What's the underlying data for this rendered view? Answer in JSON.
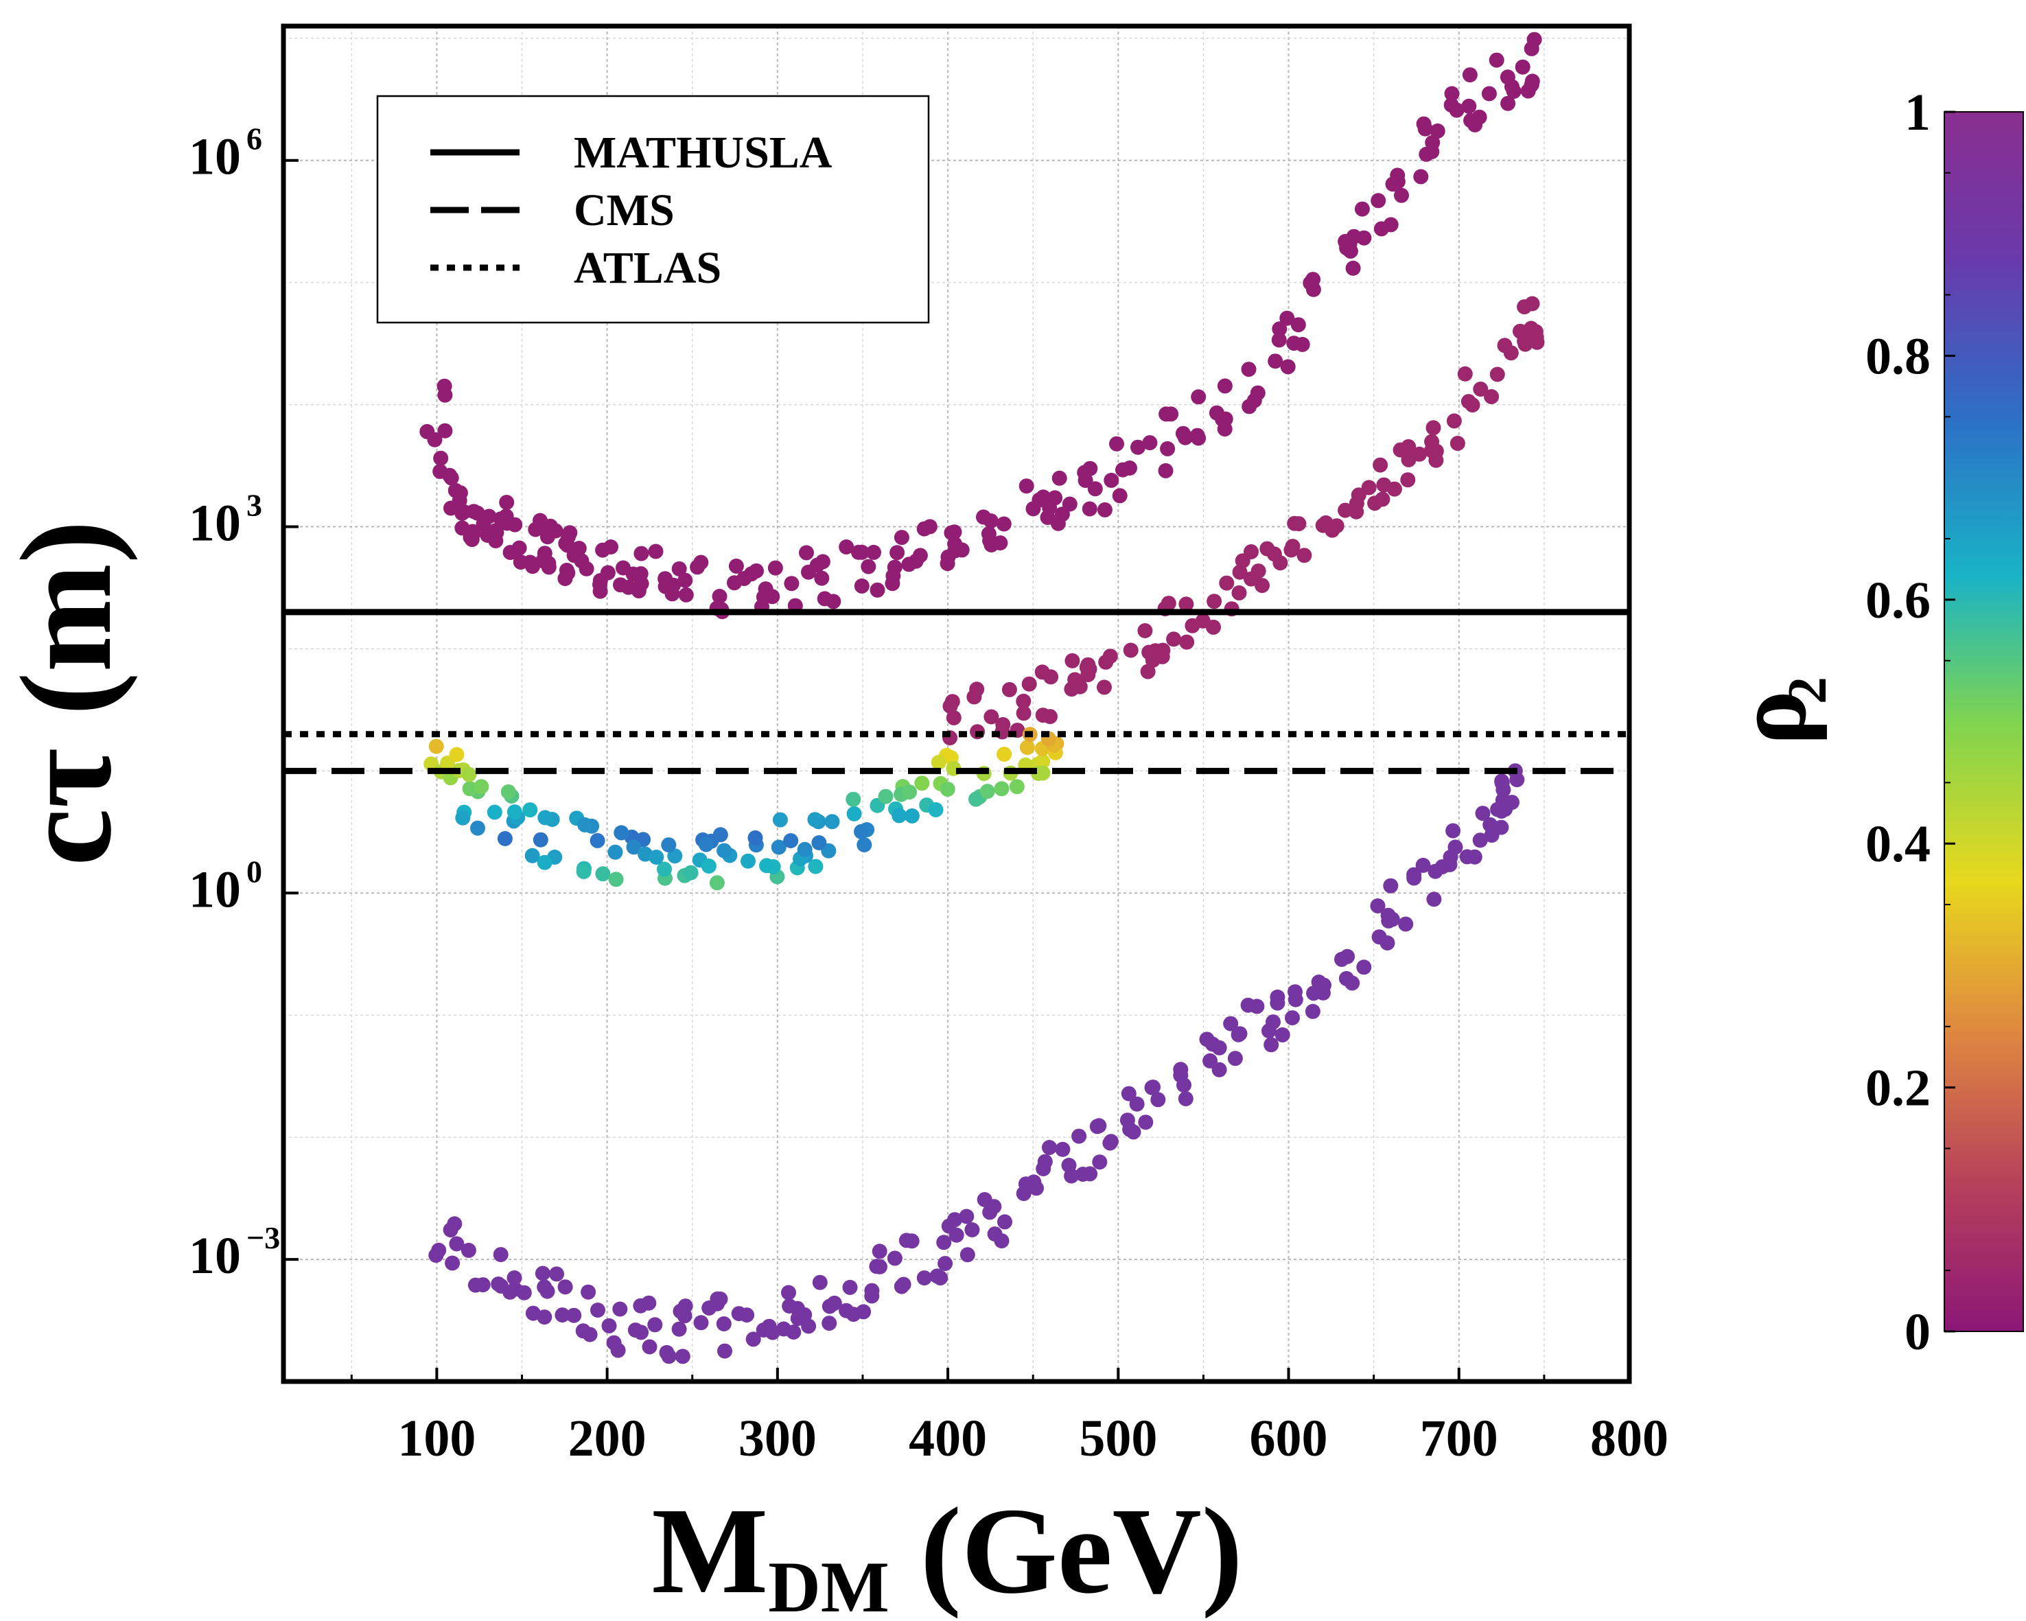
{
  "chart_data": {
    "type": "scatter",
    "xlabel": "M",
    "xlabel_sub": "DM",
    "xlabel_unit": "(GeV)",
    "ylabel": "cτ (m)",
    "y_scale": "log",
    "xlim": [
      10,
      800
    ],
    "ylim_log10": [
      -4.0,
      7.1
    ],
    "x_ticks": [
      100,
      200,
      300,
      400,
      500,
      600,
      700,
      800
    ],
    "x_tick_labels": [
      "100",
      "200",
      "300",
      "400",
      "500",
      "600",
      "700",
      "800"
    ],
    "y_ticks_log10": [
      -3,
      0,
      3,
      6
    ],
    "y_tick_labels": [
      {
        "base": "10",
        "exp": "−3"
      },
      {
        "base": "10",
        "exp": "0"
      },
      {
        "base": "10",
        "exp": "3"
      },
      {
        "base": "10",
        "exp": "6"
      }
    ],
    "grid": true,
    "legend_position": "top-left",
    "reference_lines": [
      {
        "name": "MATHUSLA",
        "style": "solid",
        "y": 200
      },
      {
        "name": "CMS",
        "style": "dashed",
        "y": 10
      },
      {
        "name": "ATLAS",
        "style": "dotted",
        "y": 20
      }
    ],
    "colorbar": {
      "label": "ρ",
      "label_sub": "2",
      "range": [
        0,
        1
      ],
      "ticks": [
        0,
        0.2,
        0.4,
        0.6,
        0.8,
        1
      ],
      "tick_labels": [
        "0",
        "0.2",
        "0.4",
        "0.6",
        "0.8",
        "1"
      ],
      "colormap_stops": [
        "#8b1777",
        "#b7405b",
        "#e08a3f",
        "#e7d81d",
        "#7fd450",
        "#19b3c6",
        "#2d6fc6",
        "#6a3aac",
        "#8a2f90"
      ]
    },
    "series": [
      {
        "color_value": 0.02,
        "points": [
          [
            100,
            10000
          ],
          [
            105,
            3000
          ],
          [
            110,
            1500
          ],
          [
            120,
            1500
          ],
          [
            130,
            900
          ],
          [
            140,
            1000
          ],
          [
            150,
            800
          ],
          [
            160,
            700
          ],
          [
            170,
            600
          ],
          [
            180,
            550
          ],
          [
            190,
            500
          ],
          [
            200,
            450
          ],
          [
            220,
            400
          ],
          [
            240,
            380
          ],
          [
            260,
            350
          ],
          [
            280,
            330
          ],
          [
            300,
            350
          ],
          [
            320,
            380
          ],
          [
            340,
            420
          ],
          [
            360,
            500
          ],
          [
            380,
            600
          ],
          [
            400,
            750
          ],
          [
            420,
            900
          ],
          [
            440,
            1200
          ],
          [
            460,
            1500
          ],
          [
            480,
            2000
          ],
          [
            500,
            2800
          ],
          [
            520,
            4000
          ],
          [
            540,
            6000
          ],
          [
            560,
            9000
          ],
          [
            580,
            15000
          ],
          [
            600,
            30000
          ],
          [
            620,
            80000
          ],
          [
            640,
            200000
          ],
          [
            660,
            500000
          ],
          [
            680,
            1200000
          ],
          [
            700,
            2500000
          ],
          [
            720,
            4000000
          ],
          [
            740,
            6000000
          ]
        ]
      },
      {
        "color_value": 0.05,
        "points": [
          [
            400,
            25
          ],
          [
            420,
            30
          ],
          [
            440,
            35
          ],
          [
            460,
            45
          ],
          [
            480,
            60
          ],
          [
            500,
            80
          ],
          [
            520,
            120
          ],
          [
            540,
            160
          ],
          [
            560,
            250
          ],
          [
            580,
            400
          ],
          [
            600,
            700
          ],
          [
            620,
            1000
          ],
          [
            640,
            1800
          ],
          [
            660,
            2500
          ],
          [
            680,
            4000
          ],
          [
            700,
            8000
          ],
          [
            720,
            20000
          ],
          [
            740,
            40000
          ]
        ]
      },
      {
        "color_value": 0.55,
        "points": [
          [
            100,
            12
          ],
          [
            110,
            8
          ],
          [
            120,
            6
          ],
          [
            140,
            4
          ],
          [
            160,
            3
          ],
          [
            180,
            2.5
          ],
          [
            200,
            2.2
          ],
          [
            220,
            2
          ],
          [
            240,
            1.8
          ],
          [
            260,
            1.9
          ],
          [
            280,
            2
          ],
          [
            300,
            2.2
          ],
          [
            320,
            2.8
          ],
          [
            340,
            3.5
          ],
          [
            360,
            4.5
          ],
          [
            380,
            6
          ],
          [
            400,
            8
          ],
          [
            420,
            10
          ],
          [
            440,
            12
          ],
          [
            460,
            14
          ]
        ]
      },
      {
        "color_value": 0.92,
        "points": [
          [
            100,
            0.002
          ],
          [
            120,
            0.0008
          ],
          [
            140,
            0.0006
          ],
          [
            160,
            0.0005
          ],
          [
            180,
            0.0004
          ],
          [
            200,
            0.0003
          ],
          [
            220,
            0.00028
          ],
          [
            240,
            0.00026
          ],
          [
            260,
            0.00028
          ],
          [
            280,
            0.0003
          ],
          [
            300,
            0.00035
          ],
          [
            320,
            0.0004
          ],
          [
            340,
            0.0005
          ],
          [
            360,
            0.0007
          ],
          [
            380,
            0.0009
          ],
          [
            400,
            0.0012
          ],
          [
            420,
            0.0018
          ],
          [
            440,
            0.003
          ],
          [
            460,
            0.005
          ],
          [
            480,
            0.008
          ],
          [
            500,
            0.012
          ],
          [
            520,
            0.02
          ],
          [
            540,
            0.03
          ],
          [
            560,
            0.05
          ],
          [
            580,
            0.08
          ],
          [
            600,
            0.12
          ],
          [
            620,
            0.2
          ],
          [
            640,
            0.3
          ],
          [
            660,
            0.6
          ],
          [
            680,
            1.2
          ],
          [
            700,
            2.5
          ],
          [
            720,
            4
          ],
          [
            730,
            6
          ]
        ]
      }
    ]
  }
}
